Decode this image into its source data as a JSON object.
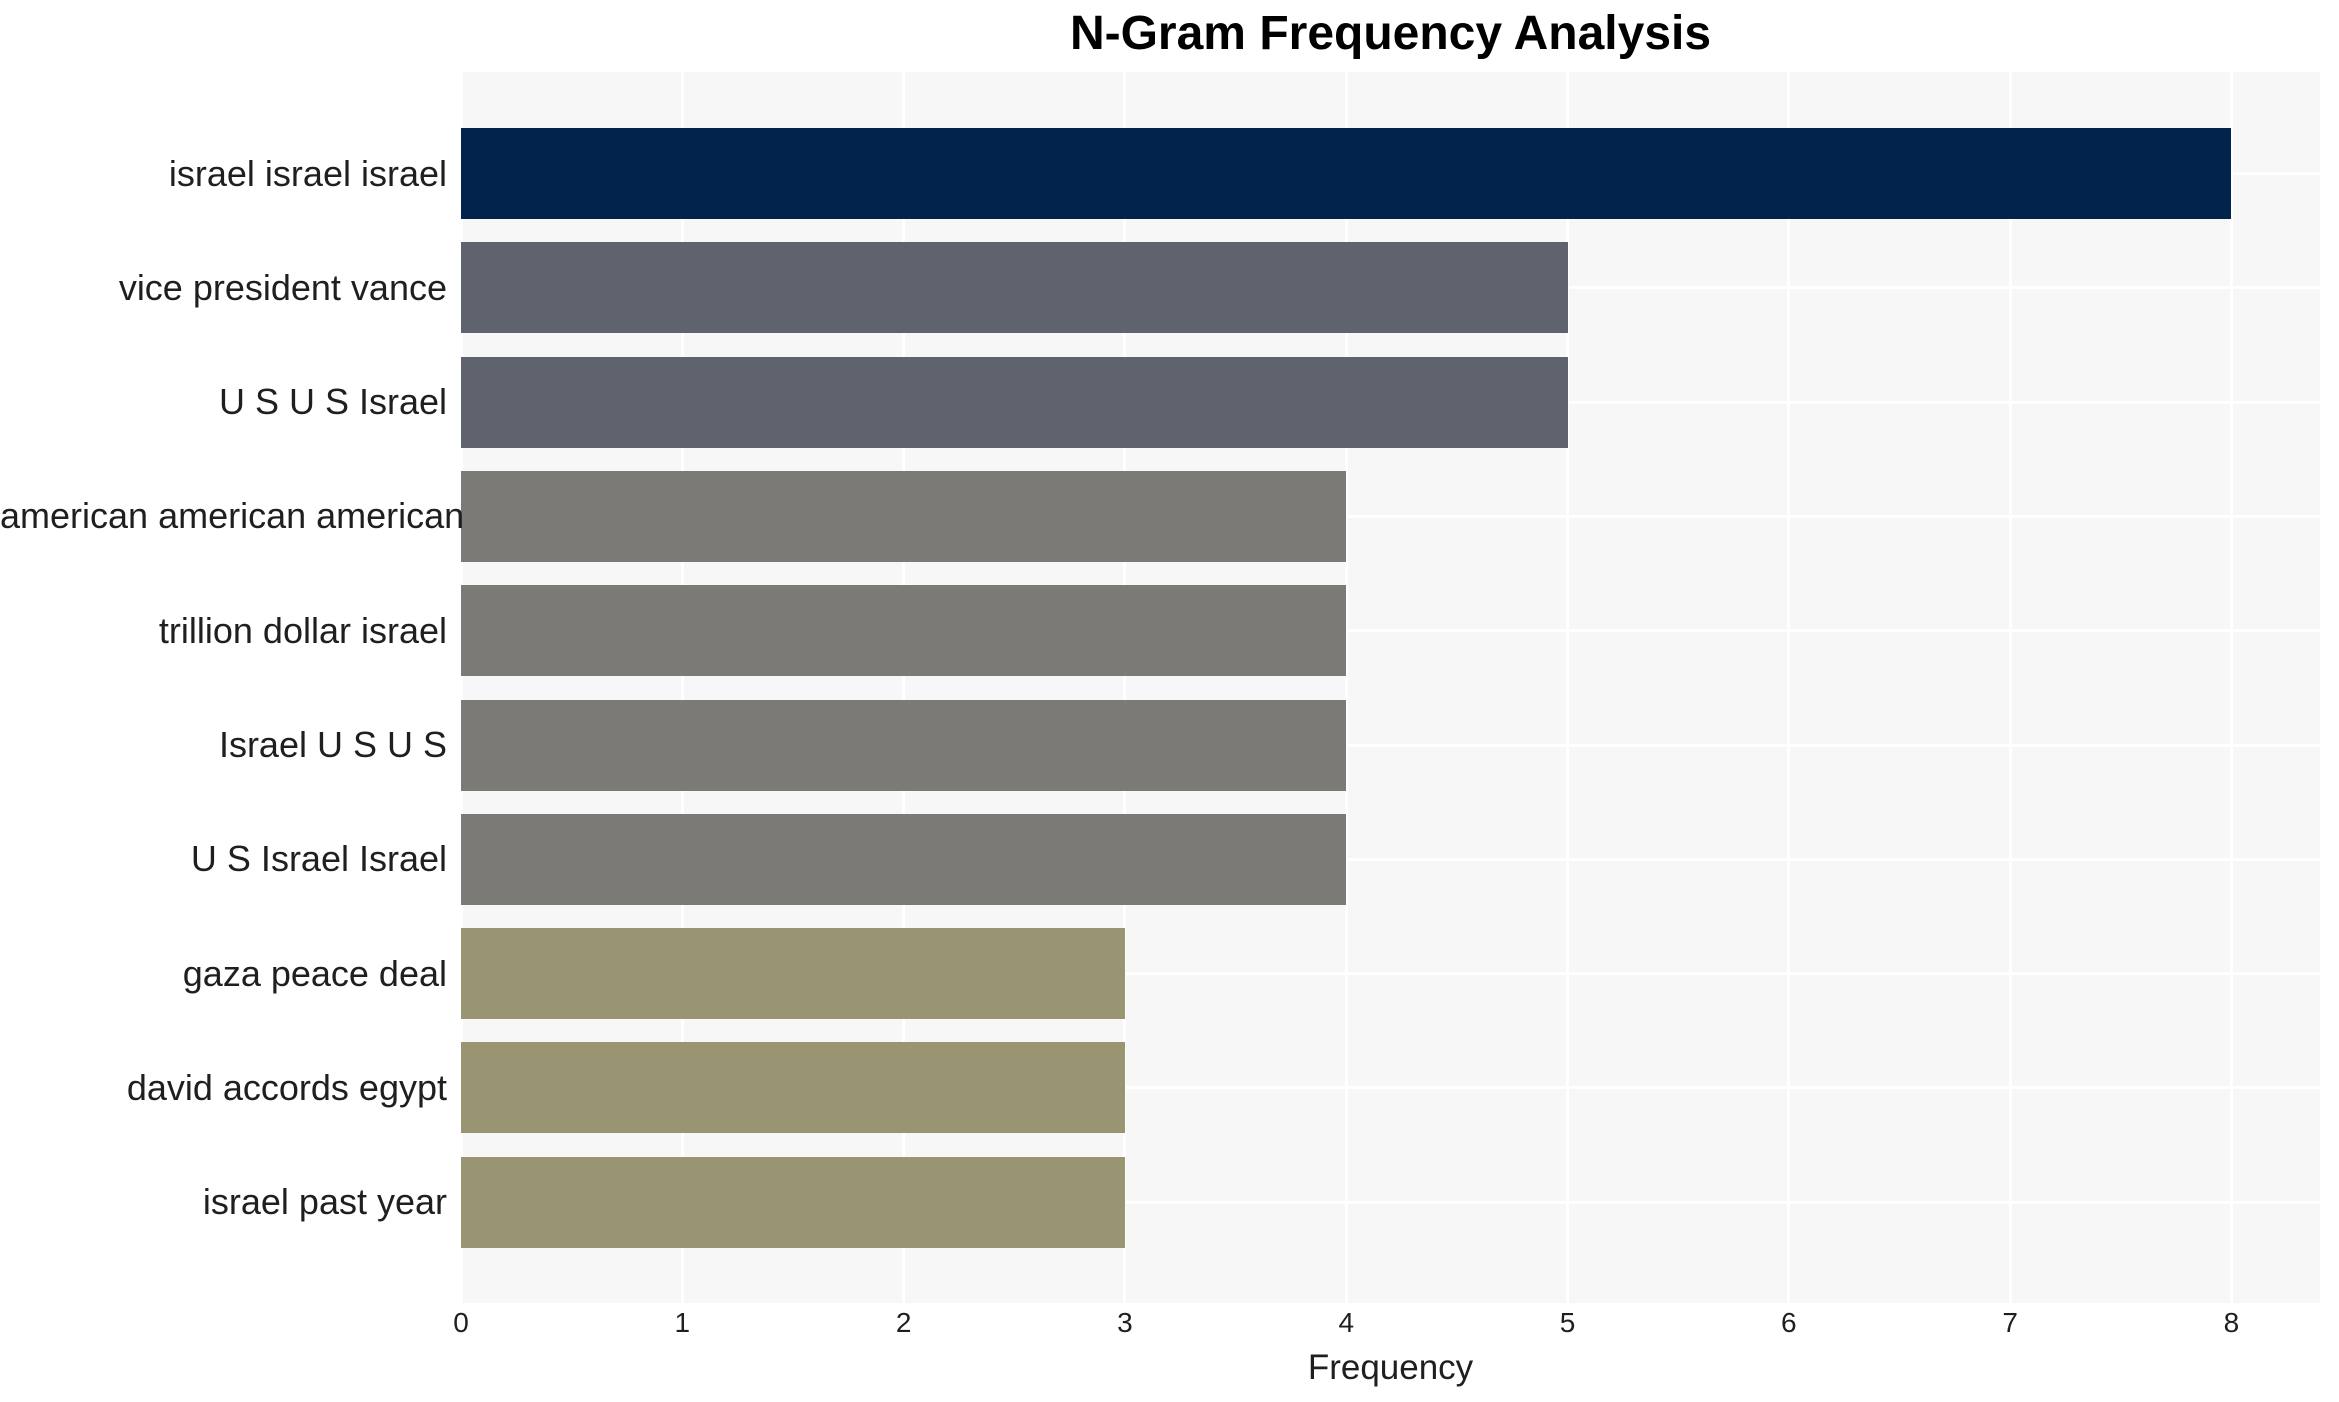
{
  "title": "N-Gram Frequency Analysis",
  "x_axis_label": "Frequency",
  "colors": {
    "page_background": "#ffffff",
    "plot_background": "#f7f7f7",
    "gridline": "#ffffff",
    "text": "#1f1f1f",
    "title_text": "#000000",
    "bar_navy": "#02234c",
    "bar_slate": "#5f636e",
    "bar_gray": "#7b7a76",
    "bar_khaki": "#999472"
  },
  "chart_data": {
    "type": "bar",
    "orientation": "horizontal",
    "title": "N-Gram Frequency Analysis",
    "xlabel": "Frequency",
    "ylabel": "",
    "categories": [
      "israel israel israel",
      "vice president vance",
      "U S U S Israel",
      "american american american",
      "trillion dollar israel",
      "Israel U S U S",
      "U S Israel Israel",
      "gaza peace deal",
      "david accords egypt",
      "israel past year"
    ],
    "values": [
      8,
      5,
      5,
      4,
      4,
      4,
      4,
      3,
      3,
      3
    ],
    "bar_colors": [
      "#02234c",
      "#5f636e",
      "#5f636e",
      "#7b7a76",
      "#7b7a76",
      "#7b7a76",
      "#7b7a76",
      "#999472",
      "#999472",
      "#999472"
    ],
    "x_ticks": [
      0,
      1,
      2,
      3,
      4,
      5,
      6,
      7,
      8
    ],
    "xlim": [
      0,
      8.4
    ],
    "grid": true,
    "legend": false
  }
}
